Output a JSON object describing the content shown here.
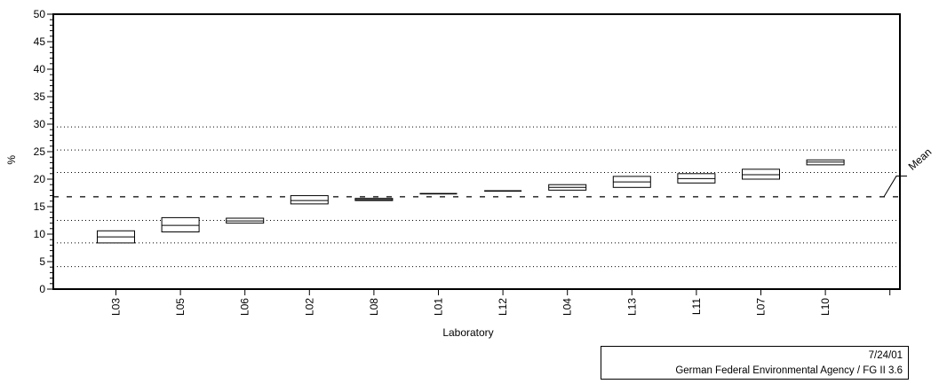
{
  "chart_data": {
    "type": "box",
    "ylabel": "%",
    "xlabel": "Laboratory",
    "ylim": [
      0,
      50
    ],
    "y_ticks": [
      "0",
      "5",
      "10",
      "15",
      "20",
      "25",
      "30",
      "35",
      "40",
      "45",
      "50"
    ],
    "categories": [
      "L03",
      "L05",
      "L06",
      "L02",
      "L08",
      "L01",
      "L12",
      "L04",
      "L13",
      "L11",
      "L07",
      "L10"
    ],
    "boxes": [
      {
        "low": 8.4,
        "high": 10.6,
        "mid": 9.5
      },
      {
        "low": 10.4,
        "high": 13.0,
        "mid": 11.6
      },
      {
        "low": 12.0,
        "high": 12.9,
        "mid": 12.4
      },
      {
        "low": 15.5,
        "high": 17.0,
        "mid": 16.1
      },
      {
        "low": 16.1,
        "high": 16.5,
        "mid": 16.3
      },
      {
        "low": 17.3,
        "high": 17.4,
        "mid": 17.35
      },
      {
        "low": 17.8,
        "high": 17.9,
        "mid": 17.85
      },
      {
        "low": 18.0,
        "high": 19.0,
        "mid": 18.5
      },
      {
        "low": 18.5,
        "high": 20.5,
        "mid": 19.5
      },
      {
        "low": 19.3,
        "high": 21.0,
        "mid": 20.1
      },
      {
        "low": 20.0,
        "high": 21.8,
        "mid": 20.8
      },
      {
        "low": 22.6,
        "high": 23.5,
        "mid": 23.1
      }
    ],
    "mean": 16.8,
    "mean_label": "Mean",
    "reference_lines": [
      4.1,
      8.4,
      12.5,
      21.2,
      25.3,
      29.5
    ],
    "grid": false
  },
  "header": {
    "title_partial": "...................."
  },
  "footer": {
    "date": "7/24/01",
    "organization": "German Federal Environmental Agency / FG II 3.6"
  }
}
